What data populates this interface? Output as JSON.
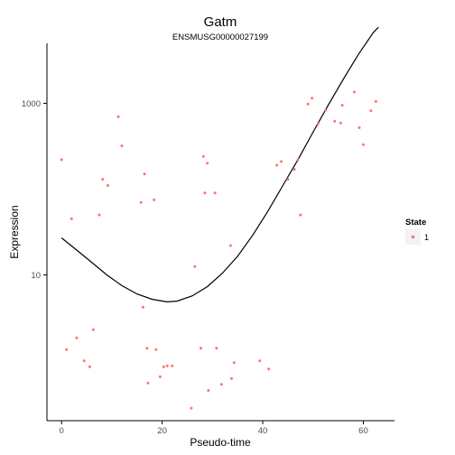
{
  "chart_data": {
    "type": "scatter",
    "title": "Gatm",
    "subtitle": "ENSMUSG00000027199",
    "xlabel": "Pseudo-time",
    "ylabel": "Expression",
    "x_ticks": [
      0,
      20,
      40,
      60
    ],
    "y_scale": "log10",
    "y_ticks": [
      10,
      1000
    ],
    "xlim": [
      -2.9,
      66.2
    ],
    "ylim": [
      0.2,
      5000
    ],
    "legend": {
      "title": "State",
      "entries": [
        "1"
      ],
      "position": "right"
    },
    "point_color": "#F8766D",
    "curve_color": "#000000",
    "grid": false,
    "points": [
      {
        "x": 0.0,
        "y": 220
      },
      {
        "x": 1.0,
        "y": 1.35
      },
      {
        "x": 2.0,
        "y": 45
      },
      {
        "x": 3.0,
        "y": 1.85
      },
      {
        "x": 4.5,
        "y": 1.0
      },
      {
        "x": 5.6,
        "y": 0.85
      },
      {
        "x": 6.3,
        "y": 2.3
      },
      {
        "x": 7.5,
        "y": 50
      },
      {
        "x": 8.2,
        "y": 130
      },
      {
        "x": 9.2,
        "y": 110
      },
      {
        "x": 11.3,
        "y": 700
      },
      {
        "x": 12.0,
        "y": 320
      },
      {
        "x": 15.8,
        "y": 70
      },
      {
        "x": 16.2,
        "y": 4.2
      },
      {
        "x": 16.5,
        "y": 150
      },
      {
        "x": 17.0,
        "y": 1.4
      },
      {
        "x": 17.2,
        "y": 0.55
      },
      {
        "x": 18.4,
        "y": 75
      },
      {
        "x": 18.8,
        "y": 1.35
      },
      {
        "x": 19.6,
        "y": 0.65
      },
      {
        "x": 20.3,
        "y": 0.85
      },
      {
        "x": 21.0,
        "y": 0.87
      },
      {
        "x": 22.0,
        "y": 0.87
      },
      {
        "x": 25.8,
        "y": 0.28
      },
      {
        "x": 26.5,
        "y": 12.5
      },
      {
        "x": 27.7,
        "y": 1.4
      },
      {
        "x": 28.2,
        "y": 240
      },
      {
        "x": 28.5,
        "y": 90
      },
      {
        "x": 29.0,
        "y": 200
      },
      {
        "x": 29.2,
        "y": 0.45
      },
      {
        "x": 30.5,
        "y": 90
      },
      {
        "x": 30.8,
        "y": 1.4
      },
      {
        "x": 31.8,
        "y": 0.53
      },
      {
        "x": 33.6,
        "y": 22
      },
      {
        "x": 33.8,
        "y": 0.62
      },
      {
        "x": 34.3,
        "y": 0.95
      },
      {
        "x": 39.4,
        "y": 1.0
      },
      {
        "x": 41.2,
        "y": 0.8
      },
      {
        "x": 42.8,
        "y": 190
      },
      {
        "x": 43.7,
        "y": 210
      },
      {
        "x": 45.0,
        "y": 130
      },
      {
        "x": 46.3,
        "y": 170
      },
      {
        "x": 47.0,
        "y": 220
      },
      {
        "x": 47.5,
        "y": 50
      },
      {
        "x": 49.0,
        "y": 980
      },
      {
        "x": 49.8,
        "y": 1150
      },
      {
        "x": 51.0,
        "y": 580
      },
      {
        "x": 52.5,
        "y": 830
      },
      {
        "x": 54.3,
        "y": 620
      },
      {
        "x": 55.5,
        "y": 590
      },
      {
        "x": 55.8,
        "y": 950
      },
      {
        "x": 58.2,
        "y": 1350
      },
      {
        "x": 59.2,
        "y": 520
      },
      {
        "x": 60.0,
        "y": 330
      },
      {
        "x": 61.5,
        "y": 820
      },
      {
        "x": 62.5,
        "y": 1050
      }
    ],
    "trend": [
      {
        "x": 0,
        "y": 27
      },
      {
        "x": 3,
        "y": 19.5
      },
      {
        "x": 6,
        "y": 14
      },
      {
        "x": 9,
        "y": 10
      },
      {
        "x": 12,
        "y": 7.5
      },
      {
        "x": 15,
        "y": 6.0
      },
      {
        "x": 18,
        "y": 5.2
      },
      {
        "x": 21,
        "y": 4.85
      },
      {
        "x": 23,
        "y": 4.95
      },
      {
        "x": 26,
        "y": 5.7
      },
      {
        "x": 29,
        "y": 7.3
      },
      {
        "x": 32,
        "y": 10.5
      },
      {
        "x": 35,
        "y": 16.5
      },
      {
        "x": 38,
        "y": 29
      },
      {
        "x": 41,
        "y": 55
      },
      {
        "x": 44,
        "y": 110
      },
      {
        "x": 47,
        "y": 220
      },
      {
        "x": 50,
        "y": 460
      },
      {
        "x": 53,
        "y": 950
      },
      {
        "x": 56,
        "y": 1900
      },
      {
        "x": 59,
        "y": 3700
      },
      {
        "x": 62,
        "y": 6700
      },
      {
        "x": 63,
        "y": 7700
      }
    ]
  }
}
